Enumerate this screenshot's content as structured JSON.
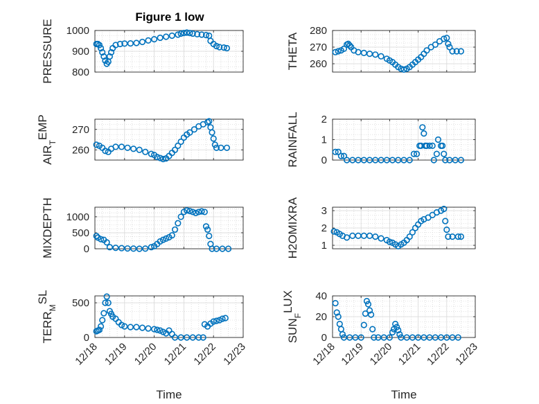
{
  "title": "Figure 1 low",
  "chart_data": [
    {
      "id": "pressure",
      "type": "scatter",
      "ylabel": "PRESSURE",
      "ylim": [
        800,
        1000
      ],
      "yticks": [
        800,
        900,
        1000
      ],
      "points": [
        [
          18.05,
          935
        ],
        [
          18.1,
          935
        ],
        [
          18.15,
          930
        ],
        [
          18.2,
          915
        ],
        [
          18.25,
          895
        ],
        [
          18.3,
          875
        ],
        [
          18.35,
          855
        ],
        [
          18.4,
          840
        ],
        [
          18.45,
          850
        ],
        [
          18.5,
          875
        ],
        [
          18.55,
          895
        ],
        [
          18.6,
          915
        ],
        [
          18.7,
          930
        ],
        [
          18.85,
          935
        ],
        [
          19.0,
          937
        ],
        [
          19.2,
          938
        ],
        [
          19.4,
          940
        ],
        [
          19.6,
          945
        ],
        [
          19.8,
          952
        ],
        [
          20.0,
          958
        ],
        [
          20.2,
          965
        ],
        [
          20.4,
          970
        ],
        [
          20.6,
          975
        ],
        [
          20.8,
          980
        ],
        [
          20.9,
          985
        ],
        [
          21.0,
          988
        ],
        [
          21.1,
          990
        ],
        [
          21.2,
          988
        ],
        [
          21.3,
          985
        ],
        [
          21.45,
          982
        ],
        [
          21.6,
          980
        ],
        [
          21.75,
          978
        ],
        [
          21.85,
          975
        ],
        [
          21.9,
          950
        ],
        [
          22.0,
          935
        ],
        [
          22.1,
          925
        ],
        [
          22.2,
          920
        ],
        [
          22.35,
          918
        ],
        [
          22.45,
          915
        ]
      ]
    },
    {
      "id": "theta",
      "type": "scatter",
      "ylabel": "THETA",
      "ylim": [
        255,
        280
      ],
      "yticks": [
        260,
        270,
        280
      ],
      "points": [
        [
          18.1,
          267
        ],
        [
          18.2,
          267.5
        ],
        [
          18.3,
          268
        ],
        [
          18.4,
          269
        ],
        [
          18.5,
          271.5
        ],
        [
          18.55,
          272
        ],
        [
          18.6,
          271
        ],
        [
          18.65,
          270
        ],
        [
          18.75,
          268
        ],
        [
          18.9,
          267
        ],
        [
          19.1,
          266.5
        ],
        [
          19.3,
          266
        ],
        [
          19.5,
          265.5
        ],
        [
          19.7,
          264.5
        ],
        [
          19.9,
          263
        ],
        [
          20.0,
          262
        ],
        [
          20.1,
          261
        ],
        [
          20.2,
          259.5
        ],
        [
          20.3,
          258
        ],
        [
          20.4,
          257
        ],
        [
          20.5,
          256.5
        ],
        [
          20.6,
          257
        ],
        [
          20.7,
          258
        ],
        [
          20.8,
          259.5
        ],
        [
          20.9,
          261
        ],
        [
          21.0,
          262.5
        ],
        [
          21.1,
          264
        ],
        [
          21.2,
          266
        ],
        [
          21.3,
          268
        ],
        [
          21.45,
          270
        ],
        [
          21.6,
          271.5
        ],
        [
          21.75,
          273.5
        ],
        [
          21.9,
          275
        ],
        [
          22.0,
          275.5
        ],
        [
          22.05,
          272
        ],
        [
          22.1,
          270
        ],
        [
          22.2,
          267.5
        ],
        [
          22.35,
          267.5
        ],
        [
          22.5,
          267.5
        ]
      ]
    },
    {
      "id": "airtemp",
      "type": "scatter",
      "ylim": [
        255,
        275
      ],
      "yticks": [
        260,
        270
      ],
      "points": [
        [
          18.05,
          262.5
        ],
        [
          18.15,
          262
        ],
        [
          18.25,
          261
        ],
        [
          18.35,
          259.5
        ],
        [
          18.45,
          259
        ],
        [
          18.55,
          260.5
        ],
        [
          18.7,
          261.5
        ],
        [
          18.9,
          261.5
        ],
        [
          19.1,
          261
        ],
        [
          19.3,
          260.5
        ],
        [
          19.5,
          260
        ],
        [
          19.7,
          259
        ],
        [
          19.9,
          258
        ],
        [
          20.0,
          257.5
        ],
        [
          20.1,
          256.5
        ],
        [
          20.2,
          256
        ],
        [
          20.3,
          255.5
        ],
        [
          20.4,
          255.8
        ],
        [
          20.5,
          257
        ],
        [
          20.6,
          258.5
        ],
        [
          20.7,
          260
        ],
        [
          20.8,
          262
        ],
        [
          20.9,
          264
        ],
        [
          21.0,
          266
        ],
        [
          21.1,
          267.5
        ],
        [
          21.2,
          268.5
        ],
        [
          21.35,
          270
        ],
        [
          21.5,
          271.5
        ],
        [
          21.65,
          272.5
        ],
        [
          21.8,
          273.5
        ],
        [
          21.85,
          274
        ],
        [
          21.9,
          271
        ],
        [
          21.95,
          268.5
        ],
        [
          22.0,
          265.5
        ],
        [
          22.05,
          262.5
        ],
        [
          22.1,
          261
        ],
        [
          22.25,
          261
        ],
        [
          22.45,
          261
        ]
      ]
    },
    {
      "id": "rainfall",
      "type": "scatter",
      "ylabel": "RAINFALL",
      "ylim": [
        0,
        2
      ],
      "yticks": [
        0,
        1,
        2
      ],
      "points": [
        [
          18.1,
          0.4
        ],
        [
          18.2,
          0.4
        ],
        [
          18.3,
          0.2
        ],
        [
          18.4,
          0.2
        ],
        [
          18.5,
          0
        ],
        [
          18.7,
          0
        ],
        [
          18.9,
          0
        ],
        [
          19.1,
          0
        ],
        [
          19.3,
          0
        ],
        [
          19.5,
          0
        ],
        [
          19.7,
          0
        ],
        [
          19.9,
          0
        ],
        [
          20.1,
          0
        ],
        [
          20.3,
          0
        ],
        [
          20.5,
          0
        ],
        [
          20.7,
          0
        ],
        [
          20.85,
          0.3
        ],
        [
          20.95,
          0.3
        ],
        [
          21.05,
          0.7
        ],
        [
          21.1,
          0.7
        ],
        [
          21.15,
          1.6
        ],
        [
          21.2,
          1.3
        ],
        [
          21.25,
          0.7
        ],
        [
          21.3,
          0.7
        ],
        [
          21.4,
          0.7
        ],
        [
          21.5,
          0.7
        ],
        [
          21.55,
          0
        ],
        [
          21.65,
          0.3
        ],
        [
          21.7,
          1.0
        ],
        [
          21.8,
          0.7
        ],
        [
          21.85,
          0.7
        ],
        [
          21.9,
          0.3
        ],
        [
          21.95,
          0
        ],
        [
          22.1,
          0
        ],
        [
          22.3,
          0
        ],
        [
          22.5,
          0
        ]
      ]
    },
    {
      "id": "mixdepth",
      "type": "scatter",
      "ylabel": "MIXDEPTH",
      "ylim": [
        0,
        1300
      ],
      "yticks": [
        0,
        500,
        1000
      ],
      "points": [
        [
          18.05,
          400
        ],
        [
          18.1,
          350
        ],
        [
          18.2,
          300
        ],
        [
          18.3,
          280
        ],
        [
          18.4,
          200
        ],
        [
          18.5,
          50
        ],
        [
          18.7,
          30
        ],
        [
          18.9,
          20
        ],
        [
          19.1,
          10
        ],
        [
          19.3,
          5
        ],
        [
          19.5,
          0
        ],
        [
          19.7,
          5
        ],
        [
          19.9,
          50
        ],
        [
          20.0,
          80
        ],
        [
          20.1,
          150
        ],
        [
          20.2,
          230
        ],
        [
          20.3,
          280
        ],
        [
          20.4,
          320
        ],
        [
          20.5,
          360
        ],
        [
          20.6,
          420
        ],
        [
          20.7,
          600
        ],
        [
          20.8,
          800
        ],
        [
          20.9,
          1000
        ],
        [
          21.0,
          1150
        ],
        [
          21.1,
          1200
        ],
        [
          21.2,
          1180
        ],
        [
          21.3,
          1150
        ],
        [
          21.4,
          1120
        ],
        [
          21.5,
          1150
        ],
        [
          21.6,
          1170
        ],
        [
          21.7,
          1150
        ],
        [
          21.75,
          700
        ],
        [
          21.8,
          600
        ],
        [
          21.85,
          400
        ],
        [
          21.9,
          150
        ],
        [
          21.95,
          0
        ],
        [
          22.1,
          0
        ],
        [
          22.3,
          0
        ],
        [
          22.5,
          0
        ]
      ]
    },
    {
      "id": "h2omix",
      "type": "scatter",
      "ylabel": "H2OMIXRA",
      "ylim": [
        0.8,
        3.2
      ],
      "yticks": [
        1,
        2,
        3
      ],
      "points": [
        [
          18.05,
          1.8
        ],
        [
          18.15,
          1.75
        ],
        [
          18.25,
          1.65
        ],
        [
          18.35,
          1.55
        ],
        [
          18.5,
          1.45
        ],
        [
          18.7,
          1.55
        ],
        [
          18.9,
          1.55
        ],
        [
          19.1,
          1.55
        ],
        [
          19.3,
          1.55
        ],
        [
          19.5,
          1.5
        ],
        [
          19.7,
          1.4
        ],
        [
          19.9,
          1.3
        ],
        [
          20.0,
          1.2
        ],
        [
          20.1,
          1.15
        ],
        [
          20.2,
          1.05
        ],
        [
          20.3,
          0.95
        ],
        [
          20.4,
          1.05
        ],
        [
          20.5,
          1.15
        ],
        [
          20.6,
          1.3
        ],
        [
          20.7,
          1.5
        ],
        [
          20.8,
          1.75
        ],
        [
          20.9,
          2.0
        ],
        [
          21.0,
          2.2
        ],
        [
          21.1,
          2.4
        ],
        [
          21.2,
          2.5
        ],
        [
          21.35,
          2.6
        ],
        [
          21.5,
          2.75
        ],
        [
          21.65,
          2.9
        ],
        [
          21.8,
          3.0
        ],
        [
          21.9,
          3.1
        ],
        [
          21.95,
          2.4
        ],
        [
          22.0,
          1.9
        ],
        [
          22.05,
          1.5
        ],
        [
          22.2,
          1.5
        ],
        [
          22.4,
          1.5
        ],
        [
          22.5,
          1.5
        ]
      ]
    },
    {
      "id": "terrmsl",
      "type": "scatter",
      "ylim": [
        0,
        600
      ],
      "yticks": [
        0,
        500
      ],
      "points": [
        [
          18.05,
          90
        ],
        [
          18.1,
          100
        ],
        [
          18.15,
          110
        ],
        [
          18.2,
          160
        ],
        [
          18.25,
          250
        ],
        [
          18.3,
          350
        ],
        [
          18.35,
          500
        ],
        [
          18.4,
          590
        ],
        [
          18.45,
          500
        ],
        [
          18.5,
          380
        ],
        [
          18.55,
          340
        ],
        [
          18.6,
          300
        ],
        [
          18.7,
          270
        ],
        [
          18.8,
          220
        ],
        [
          18.9,
          180
        ],
        [
          19.0,
          160
        ],
        [
          19.2,
          150
        ],
        [
          19.4,
          150
        ],
        [
          19.6,
          140
        ],
        [
          19.8,
          130
        ],
        [
          20.0,
          120
        ],
        [
          20.1,
          110
        ],
        [
          20.2,
          100
        ],
        [
          20.3,
          80
        ],
        [
          20.4,
          60
        ],
        [
          20.5,
          100
        ],
        [
          20.6,
          50
        ],
        [
          20.7,
          0
        ],
        [
          20.9,
          0
        ],
        [
          21.1,
          0
        ],
        [
          21.3,
          0
        ],
        [
          21.5,
          0
        ],
        [
          21.65,
          0
        ],
        [
          21.7,
          190
        ],
        [
          21.8,
          160
        ],
        [
          21.9,
          200
        ],
        [
          22.0,
          230
        ],
        [
          22.1,
          240
        ],
        [
          22.2,
          250
        ],
        [
          22.3,
          270
        ],
        [
          22.4,
          280
        ]
      ]
    },
    {
      "id": "sunflux",
      "type": "scatter",
      "ylim": [
        0,
        40
      ],
      "yticks": [
        0,
        20,
        40
      ],
      "points": [
        [
          18.1,
          33
        ],
        [
          18.15,
          24
        ],
        [
          18.2,
          20
        ],
        [
          18.25,
          13
        ],
        [
          18.3,
          8
        ],
        [
          18.35,
          3
        ],
        [
          18.4,
          0
        ],
        [
          18.6,
          0
        ],
        [
          18.8,
          0
        ],
        [
          19.0,
          0
        ],
        [
          19.1,
          12
        ],
        [
          19.15,
          23
        ],
        [
          19.2,
          35
        ],
        [
          19.25,
          32
        ],
        [
          19.3,
          26
        ],
        [
          19.35,
          22
        ],
        [
          19.4,
          8
        ],
        [
          19.45,
          0
        ],
        [
          19.6,
          0
        ],
        [
          19.8,
          0
        ],
        [
          20.0,
          0
        ],
        [
          20.1,
          5
        ],
        [
          20.15,
          8
        ],
        [
          20.2,
          13
        ],
        [
          20.25,
          10
        ],
        [
          20.3,
          7
        ],
        [
          20.35,
          3
        ],
        [
          20.4,
          0
        ],
        [
          20.6,
          0
        ],
        [
          20.8,
          0
        ],
        [
          21.0,
          0
        ],
        [
          21.2,
          0
        ],
        [
          21.4,
          0
        ],
        [
          21.6,
          0
        ],
        [
          21.8,
          0
        ],
        [
          22.0,
          0
        ],
        [
          22.2,
          0
        ],
        [
          22.4,
          0
        ]
      ]
    }
  ],
  "xaxis": {
    "xlim": [
      18,
      23
    ],
    "ticks": [
      {
        "v": 18,
        "label": "12/18"
      },
      {
        "v": 19,
        "label": "12/19"
      },
      {
        "v": 20,
        "label": "12/20"
      },
      {
        "v": 21,
        "label": "12/21"
      },
      {
        "v": 22,
        "label": "12/22"
      },
      {
        "v": 23,
        "label": "12/23"
      }
    ],
    "label": "Time"
  },
  "labels": {
    "airtemp": {
      "main": "AIR",
      "sub": "T",
      "rest": "EMP"
    },
    "terrmsl": {
      "main": "TERR",
      "sub": "M",
      "rest": "SL"
    },
    "sunflux": {
      "main": "SUN",
      "sub": "F",
      "rest": "LUX"
    }
  },
  "colors": {
    "marker": "#0072BD",
    "axis": "#262626",
    "grid": "#d9d9d9",
    "minor": "#c8c8c8"
  }
}
